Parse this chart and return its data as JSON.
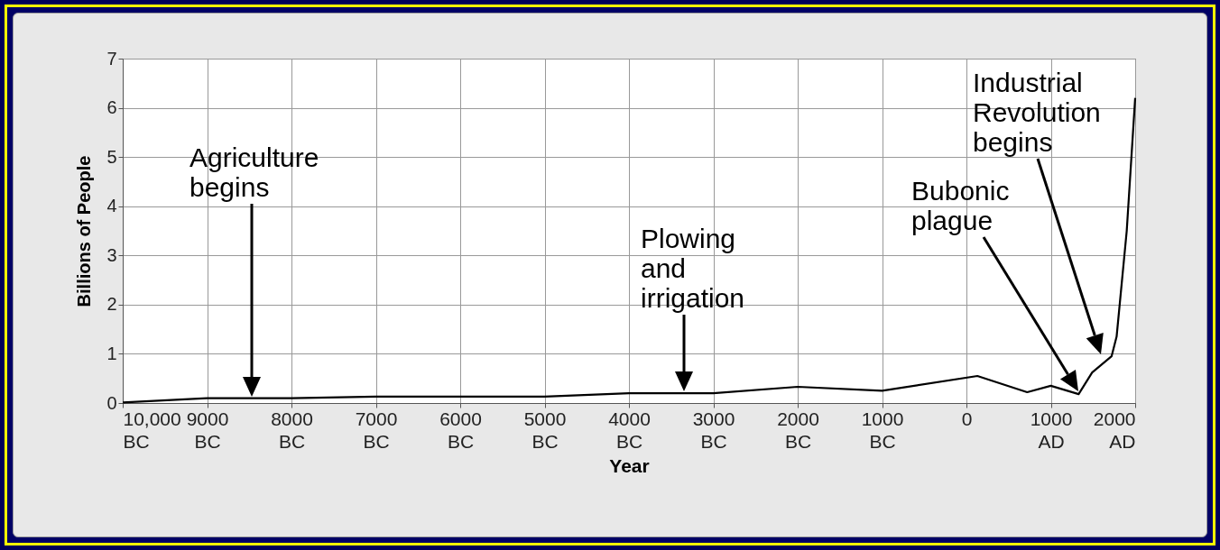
{
  "chart_data": {
    "type": "line",
    "xlabel": "Year",
    "ylabel": "Billions of People",
    "x": [
      -10000,
      -9000,
      -8000,
      -7000,
      -6000,
      -5000,
      -4000,
      -3000,
      -2000,
      -1000,
      130,
      720,
      1000,
      1330,
      1490,
      1720,
      1780,
      1900,
      2000
    ],
    "series": [
      {
        "color": "#000000",
        "values": [
          0.01,
          0.1,
          0.1,
          0.13,
          0.13,
          0.13,
          0.2,
          0.2,
          0.33,
          0.25,
          0.55,
          0.22,
          0.35,
          0.18,
          0.62,
          0.95,
          1.35,
          3.5,
          6.2
        ]
      }
    ],
    "xlim": [
      -10000,
      2000
    ],
    "xticks": [
      {
        "value": -10000,
        "label": "10,000 BC"
      },
      {
        "value": -9000,
        "label": "9000 BC"
      },
      {
        "value": -8000,
        "label": "8000 BC"
      },
      {
        "value": -7000,
        "label": "7000 BC"
      },
      {
        "value": -6000,
        "label": "6000 BC"
      },
      {
        "value": -5000,
        "label": "5000 BC"
      },
      {
        "value": -4000,
        "label": "4000 BC"
      },
      {
        "value": -3000,
        "label": "3000 BC"
      },
      {
        "value": -2000,
        "label": "2000 BC"
      },
      {
        "value": -1000,
        "label": "1000 BC"
      },
      0,
      {
        "value": 1000,
        "label": "1000 AD"
      },
      {
        "value": 2000,
        "label": "2000 AD"
      }
    ],
    "ylim": [
      0,
      7
    ],
    "yticks": [
      0,
      1,
      2,
      3,
      4,
      5,
      6,
      7
    ],
    "grid": true,
    "marker": "none",
    "line_style": "solid",
    "annotations": [
      "Agriculture begins",
      "Plowing and irrigation",
      "Bubonic plague",
      "Industrial Revolution begins"
    ]
  }
}
